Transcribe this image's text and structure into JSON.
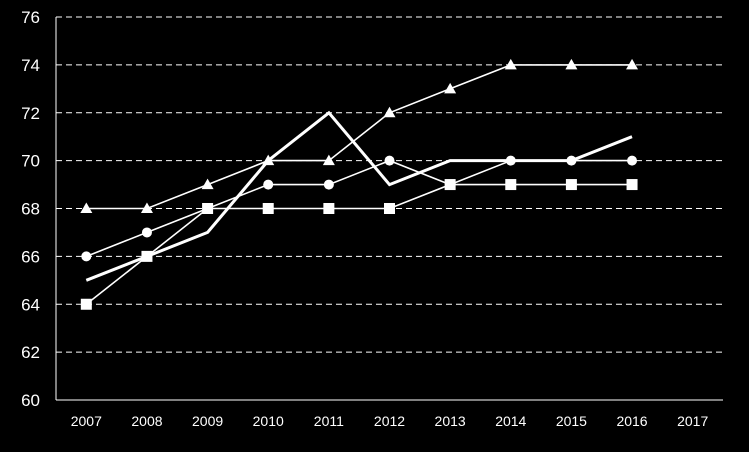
{
  "chart_data": {
    "type": "line",
    "title": "",
    "xlabel": "",
    "ylabel": "",
    "x": [
      "2007",
      "2008",
      "2009",
      "2010",
      "2011",
      "2012",
      "2013",
      "2014",
      "2015",
      "2016",
      "2017"
    ],
    "y_ticks": [
      "60",
      "62",
      "64",
      "66",
      "68",
      "70",
      "72",
      "74",
      "76"
    ],
    "ylim": [
      60,
      76
    ],
    "grid": "horizontal dashed",
    "legend": "none",
    "colors": {
      "background": "#000000",
      "foreground": "#ffffff"
    },
    "series": [
      {
        "marker": "triangle",
        "line_style": "thin",
        "values": [
          68,
          68,
          69,
          70,
          70,
          72,
          73,
          74,
          74,
          74,
          null
        ]
      },
      {
        "marker": "circle",
        "line_style": "thin",
        "values": [
          66,
          67,
          68,
          69,
          69,
          70,
          69,
          70,
          70,
          70,
          null
        ]
      },
      {
        "marker": "square",
        "line_style": "thin",
        "values": [
          64,
          66,
          68,
          68,
          68,
          68,
          69,
          69,
          69,
          69,
          null
        ]
      },
      {
        "marker": "none",
        "line_style": "thick",
        "values": [
          65,
          66,
          67,
          70,
          72,
          69,
          70,
          70,
          70,
          71,
          null
        ]
      }
    ]
  }
}
